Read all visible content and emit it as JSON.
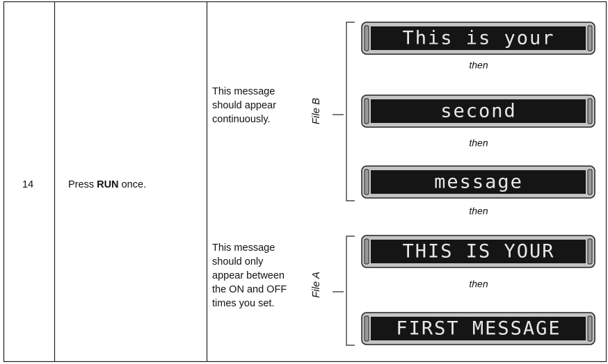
{
  "step": "14",
  "action": {
    "prefix": "Press",
    "bold": "RUN",
    "suffix": "once."
  },
  "groups": [
    {
      "file": "File B",
      "description": [
        "This message",
        "should appear",
        "continuously."
      ],
      "displays": [
        "This is your",
        "second",
        "message"
      ],
      "separators": [
        "then",
        "then",
        "then"
      ]
    },
    {
      "file": "File A",
      "description": [
        "This message",
        "should only",
        "appear between",
        "the ON and OFF",
        "times you set."
      ],
      "displays": [
        "THIS IS YOUR",
        "FIRST MESSAGE"
      ],
      "separators": [
        "then"
      ]
    }
  ]
}
